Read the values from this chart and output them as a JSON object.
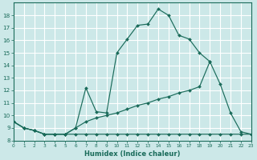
{
  "bg_color": "#cce8e8",
  "grid_color": "#ffffff",
  "line_color": "#1a6b5a",
  "xlabel": "Humidex (Indice chaleur)",
  "xlim": [
    0,
    23
  ],
  "ylim": [
    8,
    19
  ],
  "yticks": [
    8,
    9,
    10,
    11,
    12,
    13,
    14,
    15,
    16,
    17,
    18
  ],
  "xticks": [
    0,
    1,
    2,
    3,
    4,
    5,
    6,
    7,
    8,
    9,
    10,
    11,
    12,
    13,
    14,
    15,
    16,
    17,
    18,
    19,
    20,
    21,
    22,
    23
  ],
  "curve_top_x": [
    0,
    1,
    2,
    3,
    4,
    5,
    6,
    7,
    8,
    9,
    10,
    11,
    12,
    13,
    14,
    15,
    16,
    17,
    18,
    19
  ],
  "curve_top_y": [
    9.5,
    9.0,
    8.8,
    8.5,
    8.5,
    8.5,
    9.0,
    12.2,
    10.3,
    10.2,
    15.0,
    16.1,
    17.2,
    17.3,
    18.5,
    18.0,
    16.4,
    16.1,
    15.0,
    14.3
  ],
  "curve_mid_x": [
    0,
    1,
    2,
    3,
    4,
    5,
    6,
    7,
    8,
    9,
    10,
    11,
    12,
    13,
    14,
    15,
    16,
    17,
    18,
    19,
    20,
    21,
    22,
    23
  ],
  "curve_mid_y": [
    9.5,
    9.0,
    8.8,
    8.5,
    8.5,
    8.5,
    9.0,
    9.5,
    9.8,
    10.0,
    10.2,
    10.5,
    10.8,
    11.0,
    11.3,
    11.5,
    11.8,
    12.0,
    12.3,
    14.3,
    12.5,
    10.2,
    8.7,
    8.5
  ],
  "curve_bot_x": [
    0,
    1,
    2,
    3,
    4,
    5,
    6,
    7,
    8,
    9,
    10,
    11,
    12,
    13,
    14,
    15,
    16,
    17,
    18,
    19,
    20,
    21,
    22,
    23
  ],
  "curve_bot_y": [
    9.5,
    9.0,
    8.8,
    8.5,
    8.5,
    8.5,
    8.5,
    8.5,
    8.5,
    8.5,
    8.5,
    8.5,
    8.5,
    8.5,
    8.5,
    8.5,
    8.5,
    8.5,
    8.5,
    8.5,
    8.5,
    8.5,
    8.5,
    8.5
  ]
}
